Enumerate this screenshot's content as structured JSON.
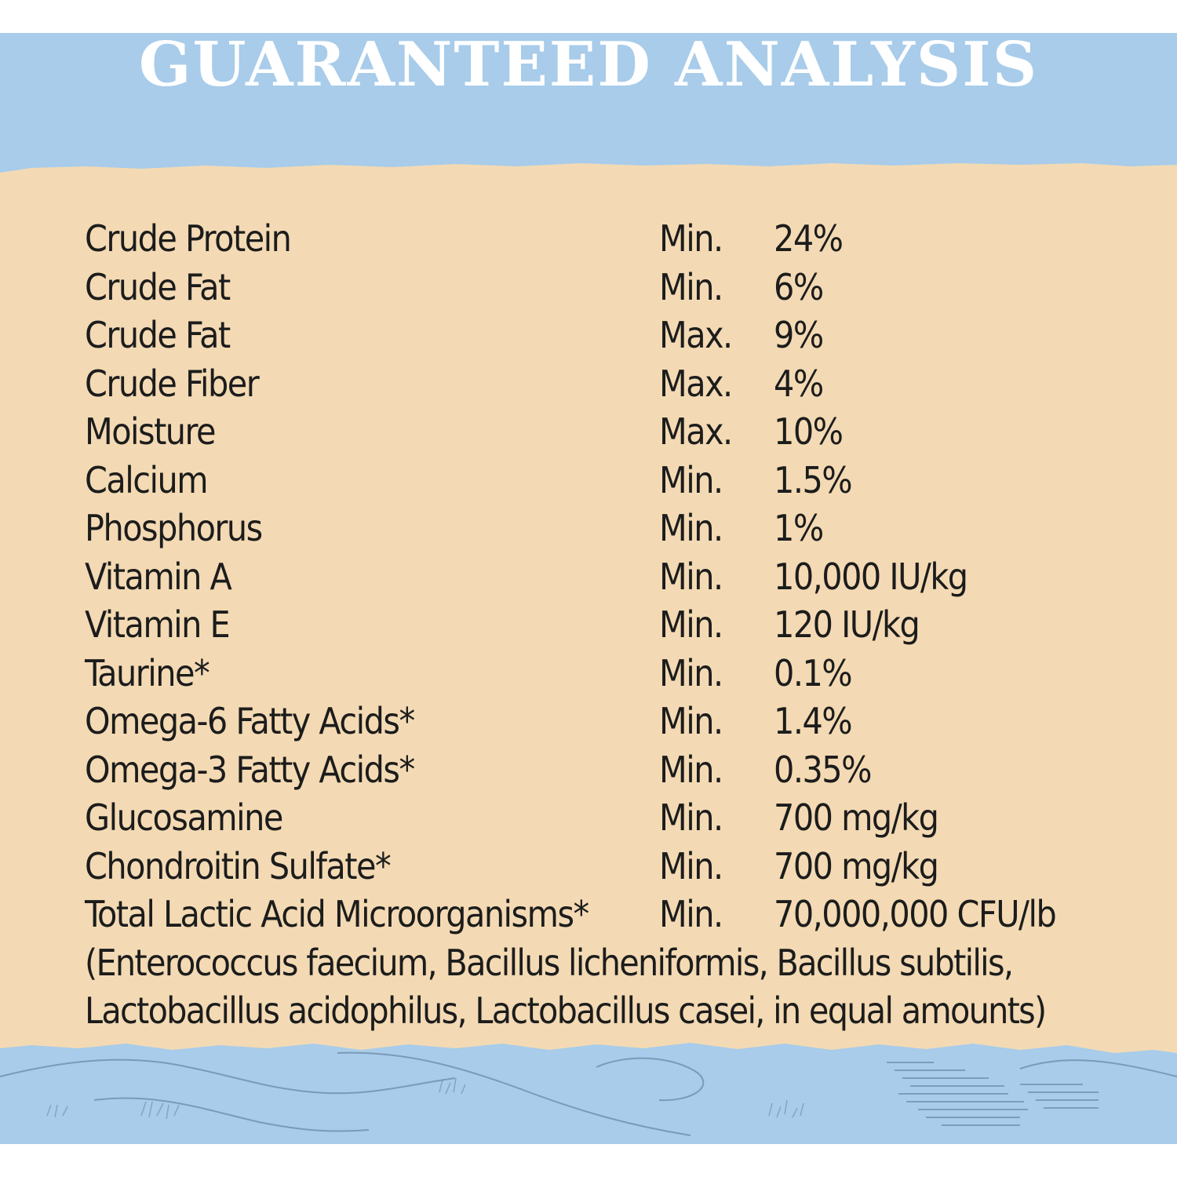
{
  "title": "GUARANTEED ANALYSIS",
  "colors": {
    "sky_blue": "#a8ccea",
    "paper_tan": "#f3dab4",
    "title_text": "#ffffff",
    "body_text": "#1c1c1c",
    "sketch_ink": "#6d8aa6"
  },
  "rows": [
    {
      "nutrient": "Crude Protein",
      "qualifier": "Min.",
      "amount": "24%"
    },
    {
      "nutrient": "Crude Fat",
      "qualifier": "Min.",
      "amount": "6%"
    },
    {
      "nutrient": "Crude Fat",
      "qualifier": "Max.",
      "amount": "9%"
    },
    {
      "nutrient": "Crude Fiber",
      "qualifier": "Max.",
      "amount": "4%"
    },
    {
      "nutrient": "Moisture",
      "qualifier": "Max.",
      "amount": "10%"
    },
    {
      "nutrient": "Calcium",
      "qualifier": "Min.",
      "amount": "1.5%"
    },
    {
      "nutrient": "Phosphorus",
      "qualifier": "Min.",
      "amount": "1%"
    },
    {
      "nutrient": "Vitamin A",
      "qualifier": "Min.",
      "amount": "10,000 IU/kg"
    },
    {
      "nutrient": "Vitamin E",
      "qualifier": "Min.",
      "amount": "120 IU/kg"
    },
    {
      "nutrient": "Taurine*",
      "qualifier": "Min.",
      "amount": "0.1%"
    },
    {
      "nutrient": "Omega-6 Fatty Acids*",
      "qualifier": "Min.",
      "amount": "1.4%"
    },
    {
      "nutrient": "Omega-3 Fatty Acids*",
      "qualifier": "Min.",
      "amount": "0.35%"
    },
    {
      "nutrient": "Glucosamine",
      "qualifier": "Min.",
      "amount": "700 mg/kg"
    },
    {
      "nutrient": "Chondroitin Sulfate*",
      "qualifier": "Min.",
      "amount": "700 mg/kg"
    },
    {
      "nutrient": "Total Lactic Acid Microorganisms*",
      "qualifier": "Min.",
      "amount": "70,000,000 CFU/lb"
    }
  ],
  "footnote_lines": [
    "(Enterococcus faecium, Bacillus licheniformis, Bacillus subtilis,",
    "Lactobacillus acidophilus, Lactobacillus casei, in equal amounts)"
  ]
}
